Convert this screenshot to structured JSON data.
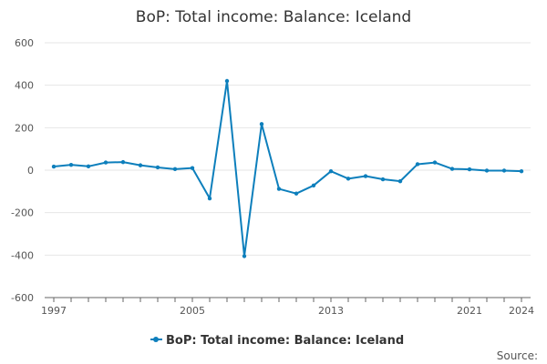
{
  "chart_data": {
    "type": "line",
    "title": "BoP: Total income: Balance: Iceland",
    "xlabel": "",
    "ylabel": "",
    "x": [
      1997,
      1998,
      1999,
      2000,
      2001,
      2002,
      2003,
      2004,
      2005,
      2006,
      2007,
      2008,
      2009,
      2010,
      2011,
      2012,
      2013,
      2014,
      2015,
      2016,
      2017,
      2018,
      2019,
      2020,
      2021,
      2022,
      2023,
      2024
    ],
    "series": [
      {
        "name": "BoP: Total income: Balance: Iceland",
        "values": [
          17,
          25,
          18,
          36,
          38,
          23,
          13,
          5,
          10,
          -133,
          420,
          -405,
          217,
          -88,
          -110,
          -72,
          -5,
          -40,
          -28,
          -43,
          -52,
          28,
          36,
          6,
          4,
          -2,
          -2,
          -5
        ]
      }
    ],
    "xlim": [
      1997,
      2024
    ],
    "ylim": [
      -600,
      600
    ],
    "x_ticks": [
      1997,
      2005,
      2013,
      2021,
      2024
    ],
    "y_ticks": [
      -600,
      -400,
      -200,
      0,
      200,
      400,
      600
    ],
    "grid": true,
    "legend_position": "bottom-center",
    "colors": {
      "series": "#0d7fbc",
      "grid": "#e6e6e6",
      "axis": "#666666"
    }
  },
  "footer": {
    "source_label": "Source:"
  }
}
